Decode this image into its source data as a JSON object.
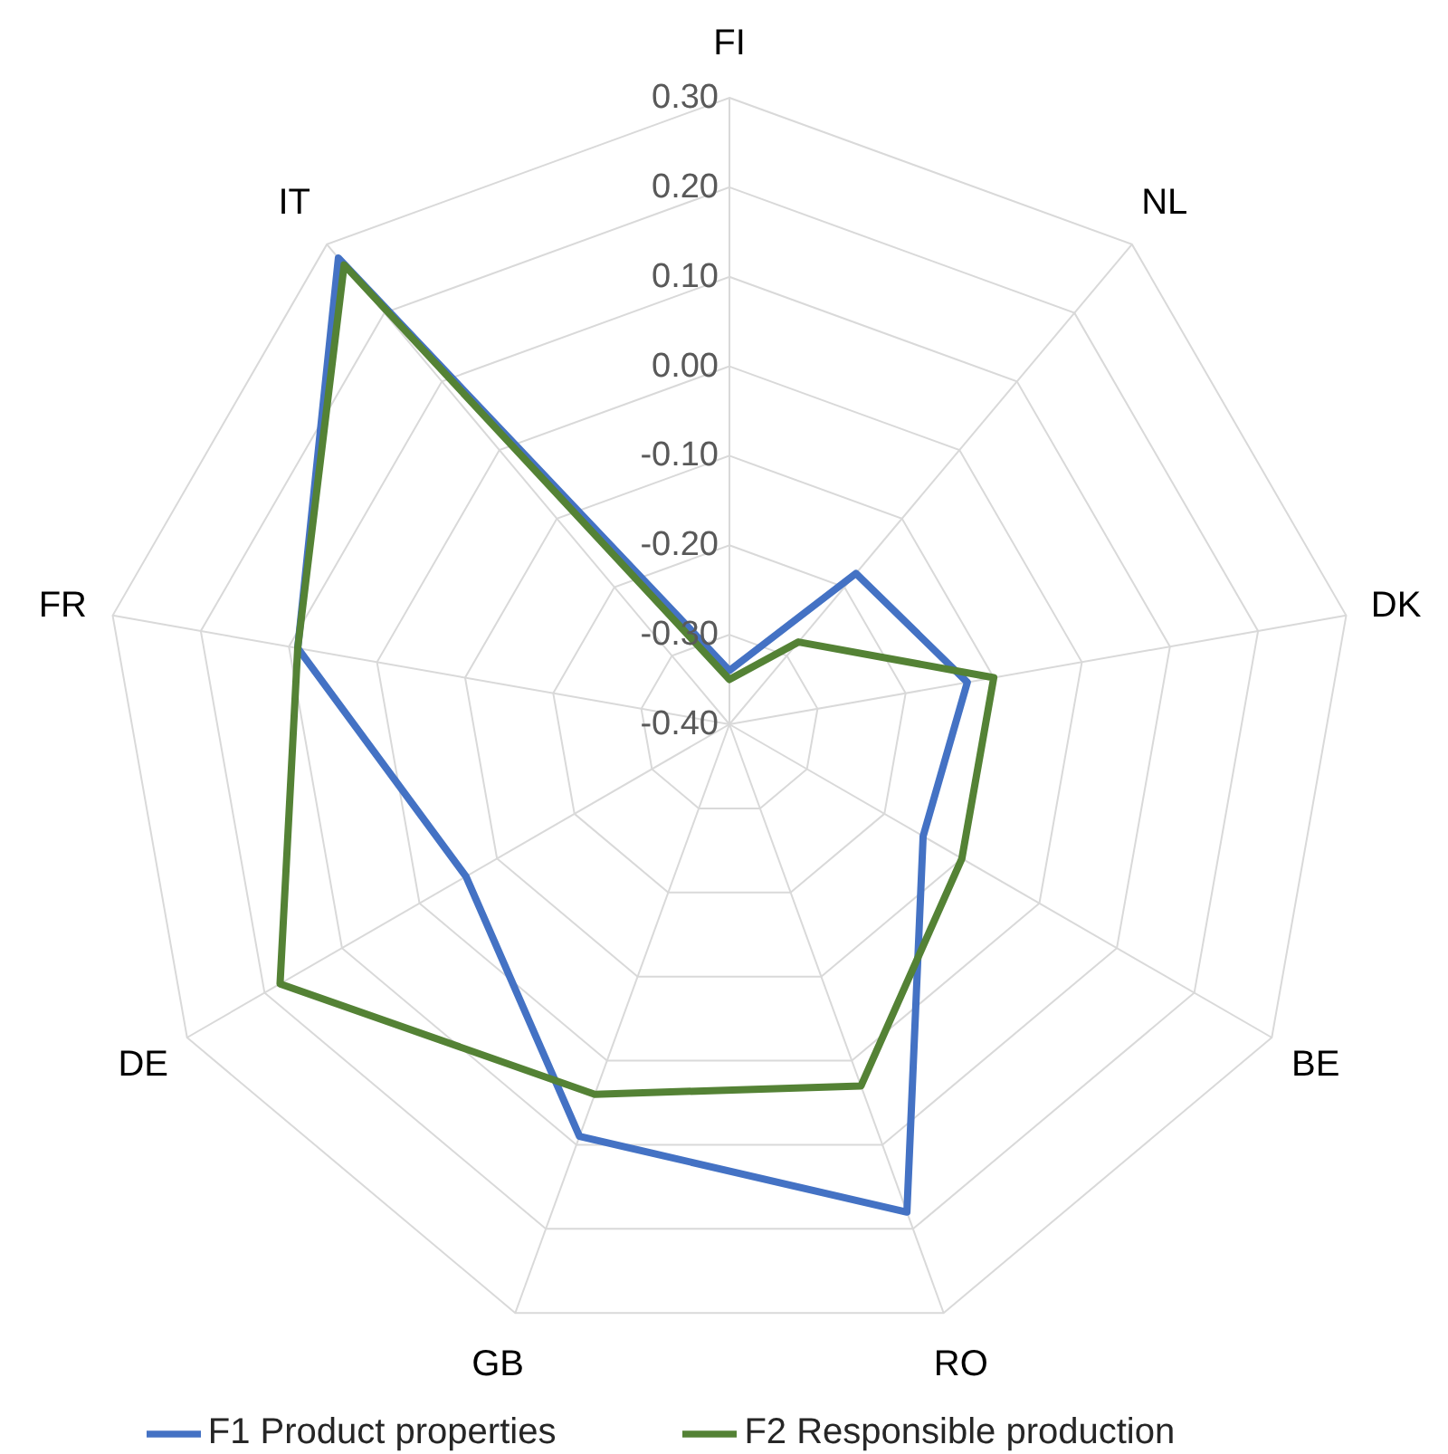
{
  "chart_data": {
    "type": "radar",
    "categories": [
      "FI",
      "NL",
      "DK",
      "BE",
      "RO",
      "GB",
      "DE",
      "FR",
      "IT"
    ],
    "series": [
      {
        "name": "F1 Product properties",
        "color": "#4472c4",
        "values": [
          -0.34,
          -0.18,
          -0.13,
          -0.15,
          0.18,
          0.09,
          -0.06,
          0.09,
          0.28
        ]
      },
      {
        "name": "F2 Responsible production",
        "color": "#548235",
        "values": [
          -0.35,
          -0.28,
          -0.1,
          -0.1,
          0.03,
          0.04,
          0.18,
          0.09,
          0.27
        ]
      }
    ],
    "ylim": [
      -0.4,
      0.3
    ],
    "yticks": [
      {
        "value": -0.4,
        "label": "-0.40"
      },
      {
        "value": -0.3,
        "label": "-0.30"
      },
      {
        "value": -0.2,
        "label": "-0.20"
      },
      {
        "value": -0.1,
        "label": "-0.10"
      },
      {
        "value": 0,
        "label": "0.00"
      },
      {
        "value": 0.1,
        "label": "0.10"
      },
      {
        "value": 0.2,
        "label": "0.20"
      },
      {
        "value": 0.3,
        "label": "0.30"
      }
    ],
    "grid": true,
    "legend": "bottom",
    "marker": "none",
    "line_style": "solid"
  }
}
